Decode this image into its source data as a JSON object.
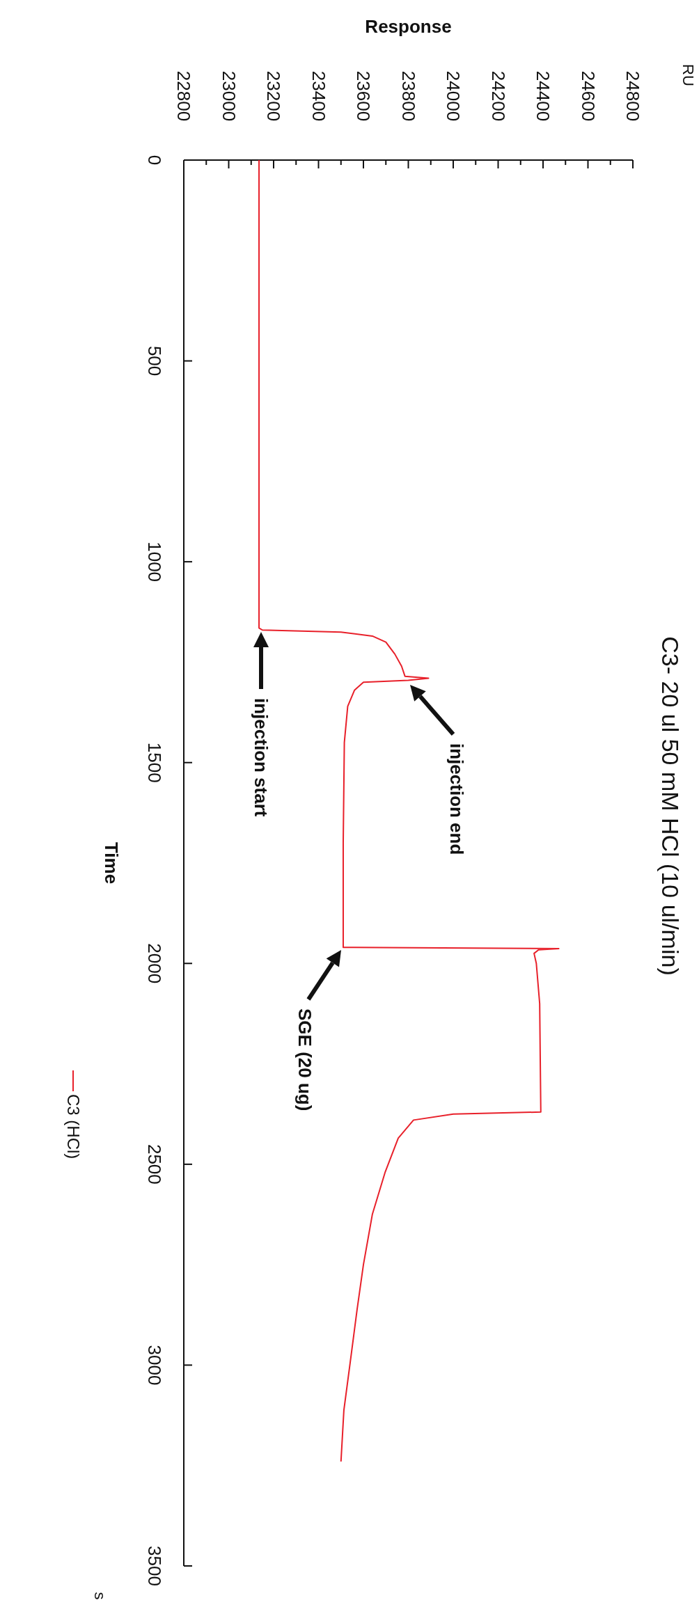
{
  "chart_data": {
    "type": "line",
    "title": "C3- 20 ul 50 mM HCl (10 ul/min)",
    "xlabel": "Response",
    "ylabel": "Time",
    "annotations": [
      "RU",
      "s",
      "injection start",
      "injection end",
      "SGE (20 ug)"
    ],
    "xlim": [
      22800,
      24800
    ],
    "xticks": [
      22800,
      {
        "value": 22900,
        "label": null
      },
      23000,
      {
        "value": 23100,
        "label": null
      },
      23200,
      {
        "value": 23300,
        "label": null
      },
      23400,
      {
        "value": 23500,
        "label": null
      },
      23600,
      {
        "value": 23700,
        "label": null
      },
      23800,
      {
        "value": 23900,
        "label": null
      },
      24000,
      {
        "value": 24100,
        "label": null
      },
      24200,
      {
        "value": 24300,
        "label": null
      },
      24400,
      {
        "value": 24500,
        "label": null
      },
      24600,
      {
        "value": 24700,
        "label": null
      },
      24800
    ],
    "ylim": [
      3500,
      0
    ],
    "yticks": [
      0,
      500,
      1000,
      1500,
      2000,
      2500,
      3000,
      3500
    ],
    "grid": false,
    "legend": "left",
    "marker": "none",
    "line_style": "solid",
    "series": [
      {
        "name": "C3 (HCl)",
        "color": "#e8202a",
        "x": [
          23135,
          23135,
          23150,
          23500,
          23640,
          23700,
          23740,
          23770,
          23785,
          23890,
          23800,
          23600,
          23560,
          23530,
          23515,
          23510,
          23510,
          24470,
          24380,
          24360,
          24370,
          24385,
          24390,
          24000,
          23823,
          23755,
          23696,
          23640,
          23600,
          23572,
          23541,
          23513,
          23500
        ],
        "values": [
          0,
          1165,
          1170,
          1175,
          1185,
          1200,
          1230,
          1260,
          1285,
          1290,
          1295,
          1300,
          1320,
          1360,
          1450,
          1700,
          1960,
          1963,
          1966,
          1975,
          2000,
          2100,
          2370,
          2375,
          2390,
          2435,
          2521,
          2624,
          2750,
          2861,
          2994,
          3112,
          3240
        ]
      }
    ]
  }
}
